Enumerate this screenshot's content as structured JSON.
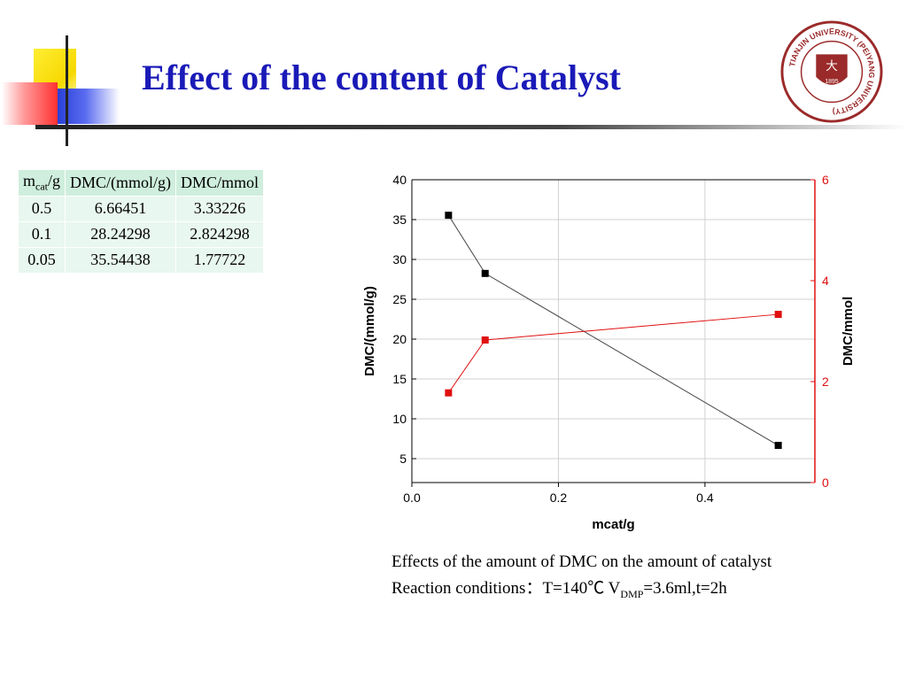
{
  "slide": {
    "title": "Effect of the content of Catalyst",
    "logo": {
      "ring_text": "TIANJIN UNIVERSITY (PEIYANG UNIVERSITY)",
      "year": "1895",
      "chinese_name": "天津大学",
      "color": "#9b2a2a"
    }
  },
  "table": {
    "headers": [
      {
        "main": "m",
        "sub": "cat",
        "suffix": "/g"
      },
      {
        "main": "DMC/(mmol/g)",
        "sub": "",
        "suffix": ""
      },
      {
        "main": "DMC/mmol",
        "sub": "",
        "suffix": ""
      }
    ],
    "rows": [
      [
        "0.5",
        "6.66451",
        "3.33226"
      ],
      [
        "0.1",
        "28.24298",
        "2.824298"
      ],
      [
        "0.05",
        "35.54438",
        "1.77722"
      ]
    ]
  },
  "chart_data": {
    "type": "line",
    "xlabel": "mcat/g",
    "ylabel": "DMC/(mmol/g)",
    "y2label": "DMC/mmol",
    "xlim": [
      0.0,
      0.55
    ],
    "ylim": [
      2,
      40
    ],
    "y2lim": [
      0,
      6
    ],
    "xticks": [
      "0.0",
      "0.2",
      "0.4"
    ],
    "yticks": [
      "5",
      "10",
      "15",
      "20",
      "25",
      "30",
      "35",
      "40"
    ],
    "y2ticks": [
      "0",
      "2",
      "4",
      "6"
    ],
    "grid": true,
    "series": [
      {
        "axis": "left",
        "color": "#000000",
        "marker": "square",
        "x": [
          0.05,
          0.1,
          0.5
        ],
        "y": [
          35.54438,
          28.24298,
          6.66451
        ]
      },
      {
        "axis": "right",
        "color": "#e01010",
        "marker": "square",
        "x": [
          0.05,
          0.1,
          0.5
        ],
        "y": [
          1.77722,
          2.824298,
          3.33226
        ]
      }
    ]
  },
  "caption": {
    "line1": "Effects of the amount of DMC on the amount of catalyst",
    "line2_prefix": "Reaction conditions：T=140℃ V",
    "line2_sub": "DMP",
    "line2_suffix": "=3.6ml,t=2h"
  }
}
